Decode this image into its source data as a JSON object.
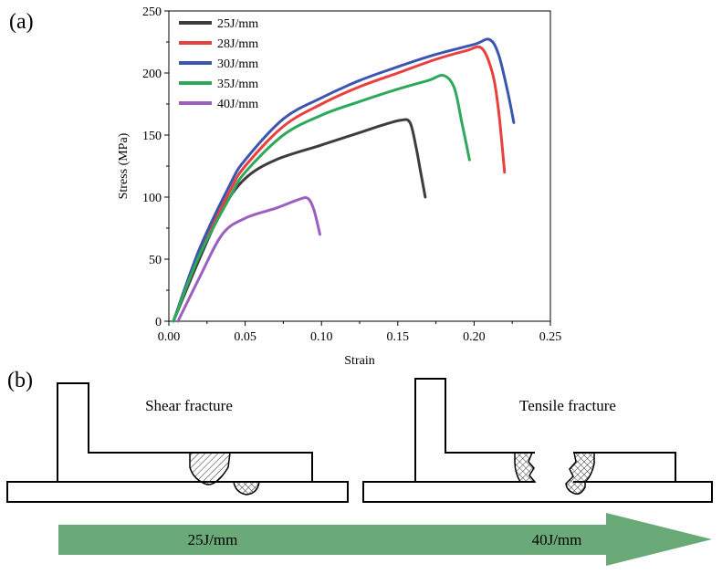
{
  "panel_a": {
    "label": "(a)"
  },
  "panel_b": {
    "label": "(b)",
    "left_caption": "Shear fracture",
    "right_caption": "Tensile fracture",
    "arrow": {
      "start_label": "25J/mm",
      "end_label": "40J/mm",
      "color": "#6aaa78"
    }
  },
  "chart_data": {
    "type": "line",
    "title": "",
    "xlabel": "Strain",
    "ylabel": "Stress (MPa)",
    "xlim": [
      0.0,
      0.25
    ],
    "ylim": [
      0,
      250
    ],
    "xticks": [
      "0.00",
      "0.05",
      "0.10",
      "0.15",
      "0.20",
      "0.25"
    ],
    "yticks": [
      "0",
      "50",
      "100",
      "150",
      "200",
      "250"
    ],
    "legend_position": "top-left",
    "grid": false,
    "series": [
      {
        "name": "25J/mm",
        "color": "#3d3d3d",
        "x": [
          0.003,
          0.02,
          0.035,
          0.05,
          0.07,
          0.1,
          0.125,
          0.14,
          0.152,
          0.158,
          0.162,
          0.165,
          0.168
        ],
        "y": [
          0,
          50,
          90,
          115,
          130,
          142,
          152,
          158,
          162,
          160,
          140,
          120,
          100
        ]
      },
      {
        "name": "28J/mm",
        "color": "#e8403f",
        "x": [
          0.003,
          0.02,
          0.04,
          0.05,
          0.075,
          0.1,
          0.125,
          0.15,
          0.175,
          0.195,
          0.205,
          0.212,
          0.216,
          0.22
        ],
        "y": [
          0,
          55,
          105,
          125,
          157,
          175,
          189,
          200,
          211,
          218,
          220,
          200,
          170,
          120
        ]
      },
      {
        "name": "30J/mm",
        "color": "#3a56b0",
        "x": [
          0.003,
          0.02,
          0.04,
          0.05,
          0.075,
          0.1,
          0.125,
          0.15,
          0.175,
          0.2,
          0.21,
          0.216,
          0.222,
          0.226
        ],
        "y": [
          0,
          58,
          110,
          130,
          163,
          180,
          194,
          205,
          215,
          223,
          227,
          215,
          185,
          160
        ]
      },
      {
        "name": "35J/mm",
        "color": "#2ea85a",
        "x": [
          0.003,
          0.02,
          0.04,
          0.05,
          0.075,
          0.1,
          0.125,
          0.15,
          0.17,
          0.18,
          0.187,
          0.192,
          0.197
        ],
        "y": [
          0,
          53,
          100,
          120,
          150,
          166,
          177,
          187,
          194,
          198,
          188,
          160,
          130
        ]
      },
      {
        "name": "40J/mm",
        "color": "#9b5fc0",
        "x": [
          0.006,
          0.02,
          0.035,
          0.05,
          0.07,
          0.085,
          0.091,
          0.095,
          0.099
        ],
        "y": [
          0,
          35,
          70,
          83,
          91,
          98,
          99,
          90,
          70
        ]
      }
    ]
  }
}
